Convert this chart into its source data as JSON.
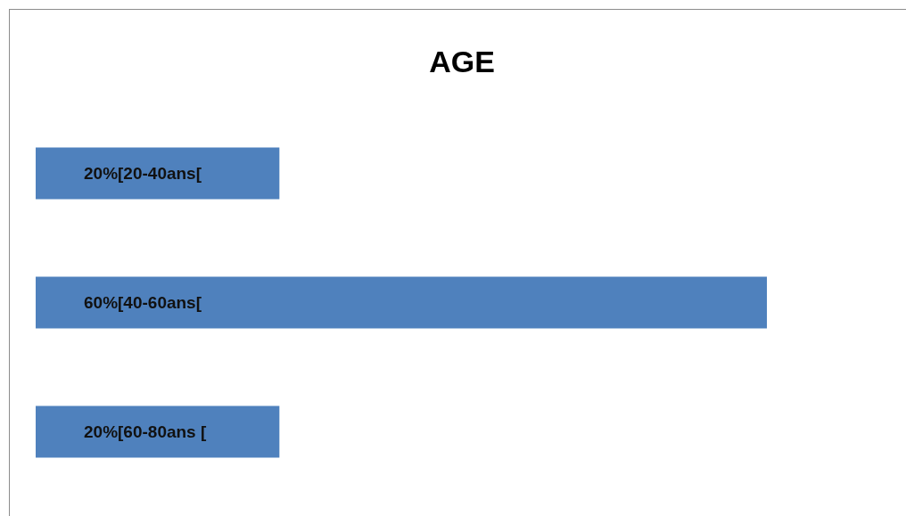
{
  "chart_data": {
    "type": "bar",
    "title": "AGE",
    "orientation": "horizontal",
    "categories": [
      "[20-40ans[",
      "[40-60ans[",
      "[60-80ans ["
    ],
    "values": [
      20,
      60,
      20
    ],
    "value_labels": [
      "20%",
      "60%",
      "20%"
    ],
    "color": "#4f81bd",
    "legend": false
  }
}
